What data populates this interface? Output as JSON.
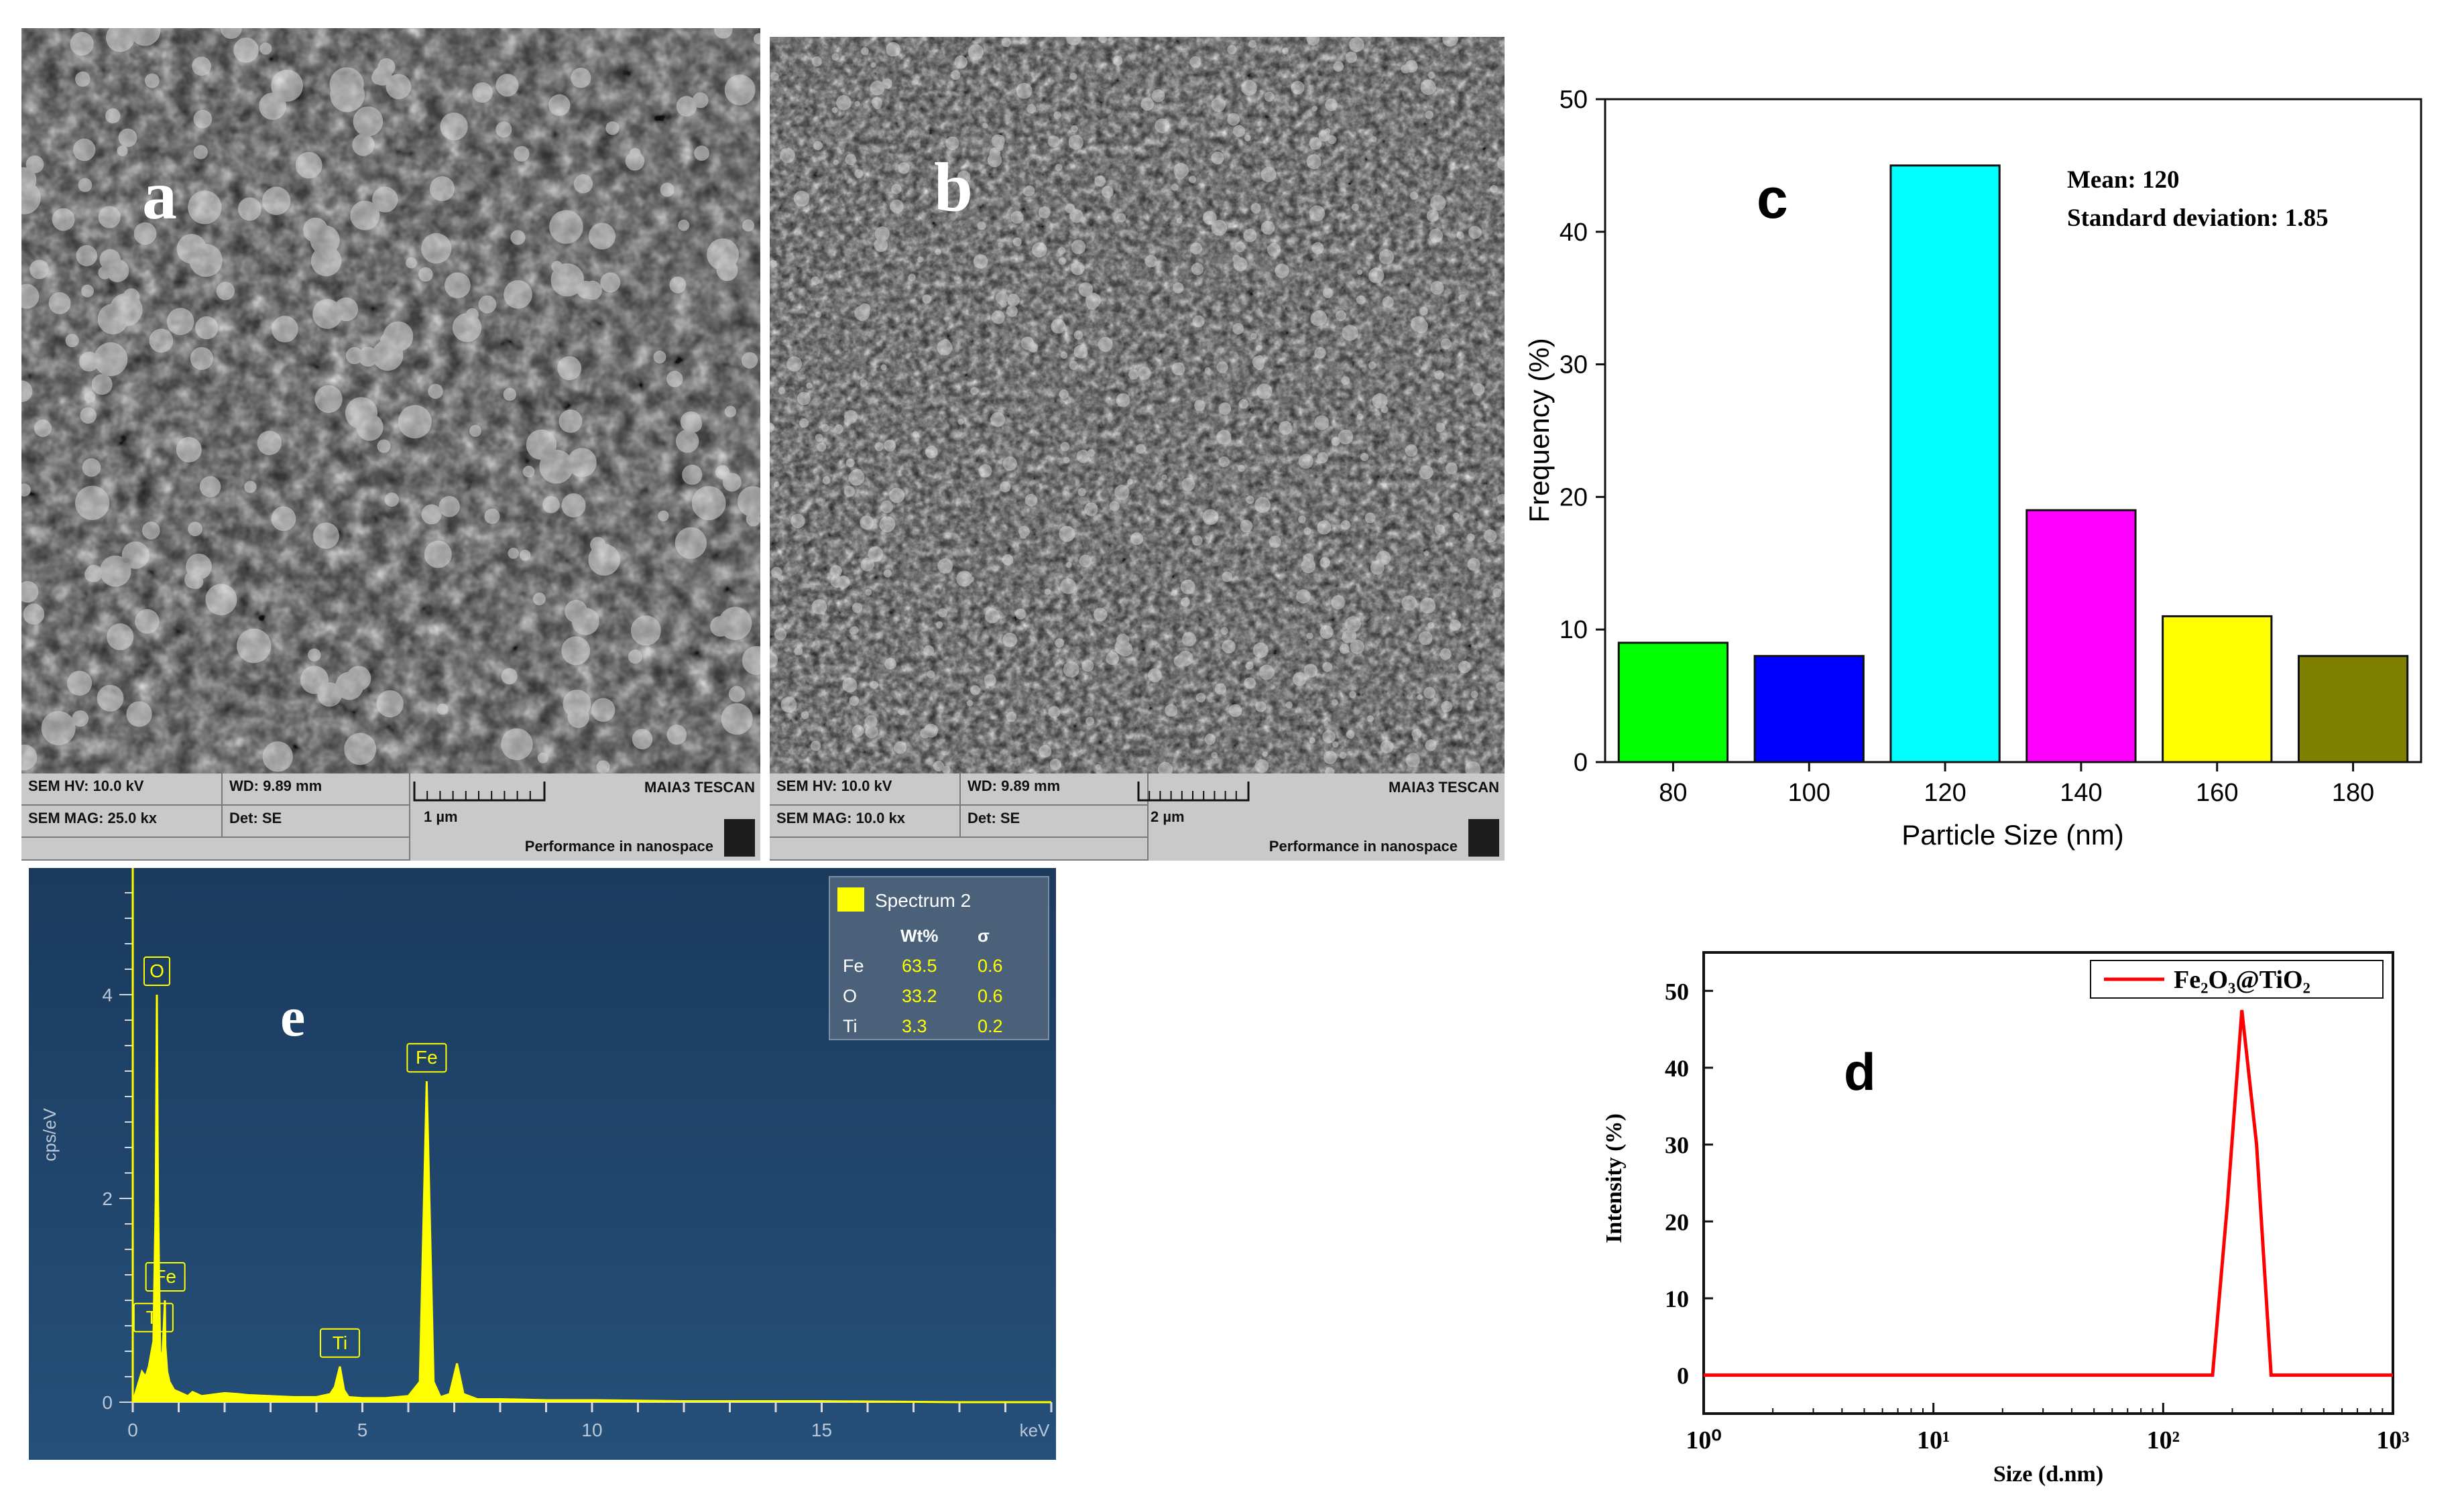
{
  "colors": {
    "sem_dark": "#2a2a2a",
    "eds_bg": "#1f3f63",
    "eds_peak": "#ffff00"
  },
  "panel_a": {
    "letter": "a",
    "info": {
      "hv": "SEM HV: 10.0 kV",
      "wd": "WD: 9.89 mm",
      "brand": "MAIA3 TESCAN",
      "mag": "SEM MAG: 25.0 kx",
      "det": "Det: SE",
      "scale": "1 µm",
      "tagline": "Performance in nanospace"
    }
  },
  "panel_b": {
    "letter": "b",
    "info": {
      "hv": "SEM HV: 10.0 kV",
      "wd": "WD: 9.89 mm",
      "brand": "MAIA3 TESCAN",
      "mag": "SEM MAG: 10.0 kx",
      "det": "Det: SE",
      "scale": "2 µm",
      "tagline": "Performance in nanospace"
    }
  },
  "panel_c": {
    "letter": "c",
    "annotation_mean": "Mean: 120",
    "annotation_sd": "Standard deviation: 1.85",
    "colors": [
      "#00ff00",
      "#0000ff",
      "#00ffff",
      "#ff00ff",
      "#ffff00",
      "#808000"
    ]
  },
  "panel_d": {
    "letter": "d"
  },
  "panel_e": {
    "letter": "e",
    "legend_title": "Spectrum 2",
    "table_headers": [
      "",
      "Wt%",
      "σ"
    ],
    "table_rows": [
      [
        "Fe",
        "63.5",
        "0.6"
      ],
      [
        "O",
        "33.2",
        "0.6"
      ],
      [
        "Ti",
        "3.3",
        "0.2"
      ]
    ],
    "peak_labels": [
      "O",
      "Fe",
      "Fe",
      "Ti",
      "Ti"
    ]
  },
  "chart_data": [
    {
      "type": "bar",
      "categories": [
        "80",
        "100",
        "120",
        "140",
        "160",
        "180"
      ],
      "values": [
        9,
        8,
        45,
        19,
        11,
        8
      ],
      "xlabel": "Particle Size (nm)",
      "ylabel": "Frequency (%)",
      "ylim": [
        0,
        50
      ],
      "yticks": [
        0,
        10,
        20,
        30,
        40,
        50
      ],
      "grid": false
    },
    {
      "type": "line",
      "xscale": "log",
      "xlim": [
        1,
        1000
      ],
      "ylim": [
        -5,
        55
      ],
      "yticks": [
        0,
        10,
        20,
        30,
        40,
        50
      ],
      "xticks": [
        "10⁰",
        "10¹",
        "10²",
        "10³"
      ],
      "xlabel": "Size (d.nm)",
      "ylabel": "Intensity (%)",
      "legend_position": "top-right",
      "series": [
        {
          "name": "Fe₂O₃@TiO₂",
          "color": "#ff0000",
          "x": [
            1,
            150,
            164,
            190,
            220,
            255,
            295,
            340,
            1000
          ],
          "y": [
            0,
            0,
            0,
            22,
            47.5,
            30,
            0,
            0,
            0
          ]
        }
      ]
    },
    {
      "type": "line",
      "xlim": [
        0,
        20
      ],
      "ylim": [
        0,
        5
      ],
      "xticks": [
        0,
        5,
        10,
        15
      ],
      "yticks": [
        0,
        2,
        4
      ],
      "xlabel": "keV",
      "ylabel": "cps/eV",
      "series": [
        {
          "name": "Spectrum 2",
          "x": [
            0,
            0.1,
            0.2,
            0.28,
            0.35,
            0.45,
            0.5,
            0.525,
            0.55,
            0.6,
            0.65,
            0.7,
            0.71,
            0.75,
            0.8,
            0.9,
            1.0,
            1.2,
            1.3,
            1.5,
            2.0,
            2.3,
            2.5,
            3.0,
            3.5,
            4.0,
            4.3,
            4.4,
            4.51,
            4.6,
            4.7,
            5.0,
            5.5,
            6.0,
            6.25,
            6.4,
            6.55,
            6.7,
            6.9,
            7.06,
            7.2,
            7.5,
            8.0,
            9.0,
            10.0,
            12.0,
            15.0,
            18.0,
            20.0
          ],
          "y": [
            0,
            0.15,
            0.3,
            0.25,
            0.35,
            0.6,
            2.0,
            4.0,
            2.0,
            0.4,
            0.5,
            1.0,
            0.55,
            0.3,
            0.2,
            0.12,
            0.1,
            0.06,
            0.1,
            0.06,
            0.09,
            0.08,
            0.07,
            0.06,
            0.05,
            0.05,
            0.08,
            0.15,
            0.35,
            0.12,
            0.05,
            0.04,
            0.04,
            0.06,
            0.2,
            3.15,
            0.2,
            0.05,
            0.08,
            0.38,
            0.08,
            0.03,
            0.03,
            0.02,
            0.02,
            0.01,
            0.01,
            0.0,
            0.0
          ]
        }
      ]
    }
  ]
}
